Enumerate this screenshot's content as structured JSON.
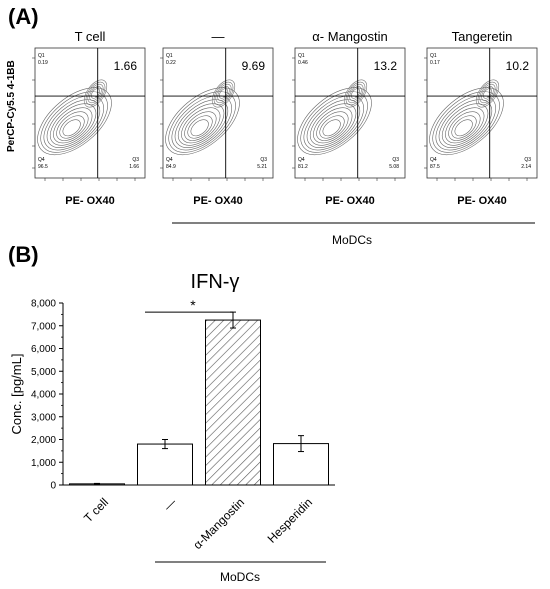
{
  "panel_a": {
    "letter": "(A)",
    "ylabel": "PerCP-Cy5.5 4-1BB",
    "group_label": "MoDCs",
    "plots": [
      {
        "title": "T cell",
        "xlabel": "PE- OX40",
        "q1": "Q1\n0.19",
        "q2": "1.66",
        "q3": "Q3\n1.66",
        "q4": "Q4\n96.5"
      },
      {
        "title": "—",
        "xlabel": "PE- OX40",
        "q1": "Q1\n0.22",
        "q2": "9.69",
        "q3": "Q3\n5.21",
        "q4": "Q4\n84.9"
      },
      {
        "title": "α- Mangostin",
        "xlabel": "PE- OX40",
        "q1": "Q1\n0.46",
        "q2": "13.2",
        "q3": "Q3\n5.08",
        "q4": "Q4\n81.2"
      },
      {
        "title": "Tangeretin",
        "xlabel": "PE- OX40",
        "q1": "Q1\n0.17",
        "q2": "10.2",
        "q3": "Q3\n2.14",
        "q4": "Q4\n87.5"
      }
    ]
  },
  "panel_b": {
    "letter": "(B)",
    "group_label": "MoDCs",
    "significance": "*"
  },
  "chart_data": {
    "type": "bar",
    "title": "IFN-γ",
    "ylabel": "Conc. [pg/mL]",
    "xlabel": "",
    "categories": [
      "T cell",
      "—",
      "α-Mangostin",
      "Hesperidin"
    ],
    "values": [
      50,
      1800,
      7250,
      1820
    ],
    "errors": [
      20,
      200,
      350,
      350
    ],
    "patterns": [
      "none",
      "none",
      "hatched",
      "none"
    ],
    "ylim": [
      0,
      8000
    ],
    "yticks": [
      0,
      1000,
      2000,
      3000,
      4000,
      5000,
      6000,
      7000,
      8000
    ],
    "ytick_labels": [
      "0",
      "1,000",
      "2,000",
      "3,000",
      "4,000",
      "5,000",
      "6,000",
      "7,000",
      "8,000"
    ],
    "grid": false,
    "legend": "none"
  }
}
